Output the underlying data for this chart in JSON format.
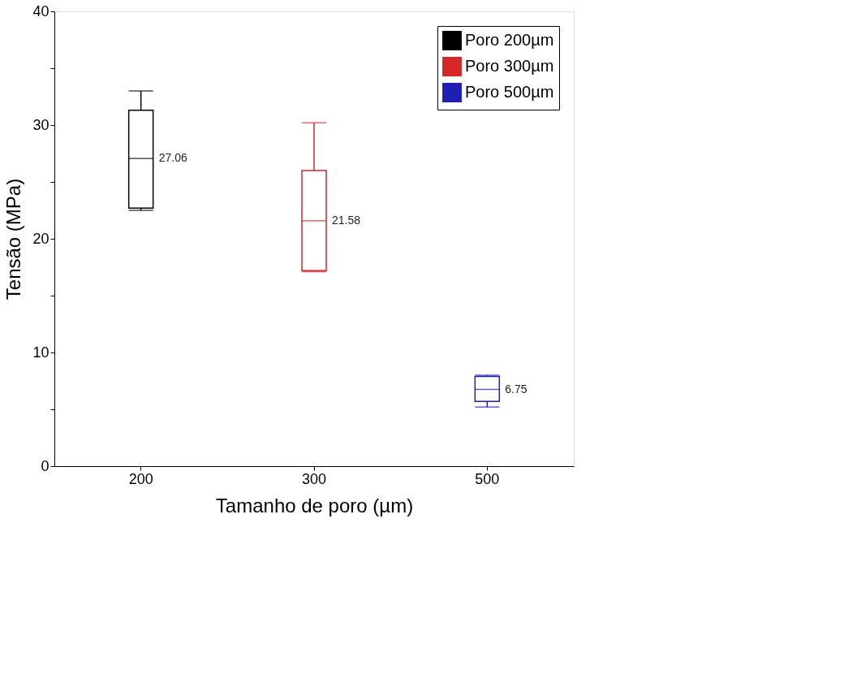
{
  "chart_data": {
    "type": "box",
    "xlabel": "Tamanho de poro (µm)",
    "ylabel": "Tensão (MPa)",
    "categories": [
      "200",
      "300",
      "500"
    ],
    "series": [
      {
        "name": "Poro 200µm",
        "color": "#000000",
        "boxes": [
          {
            "low": 22.5,
            "q1": 22.7,
            "median": 27.06,
            "q3": 31.3,
            "high": 33.0
          },
          null,
          null
        ]
      },
      {
        "name": "Poro 300µm",
        "color": "#d62728",
        "boxes": [
          null,
          {
            "low": 17.1,
            "q1": 17.2,
            "median": 21.58,
            "q3": 26.0,
            "high": 30.2
          },
          null
        ]
      },
      {
        "name": "Poro 500µm",
        "color": "#1f1fb4",
        "boxes": [
          null,
          null,
          {
            "low": 5.2,
            "q1": 5.7,
            "median": 6.75,
            "q3": 7.9,
            "high": 8.0
          }
        ]
      }
    ],
    "ylim": [
      0,
      40
    ],
    "yticks": [
      0,
      {
        "value": 5,
        "label": null
      },
      10,
      {
        "value": 15,
        "label": null
      },
      20,
      {
        "value": 25,
        "label": null
      },
      30,
      {
        "value": 35,
        "label": null
      },
      40
    ],
    "annotations": [
      {
        "text": "27.06",
        "x": "200",
        "y": 27.06
      },
      {
        "text": "21.58",
        "x": "300",
        "y": 21.58
      },
      {
        "text": "6.75",
        "x": "500",
        "y": 6.75
      }
    ],
    "legend": "top right",
    "grid": false
  }
}
